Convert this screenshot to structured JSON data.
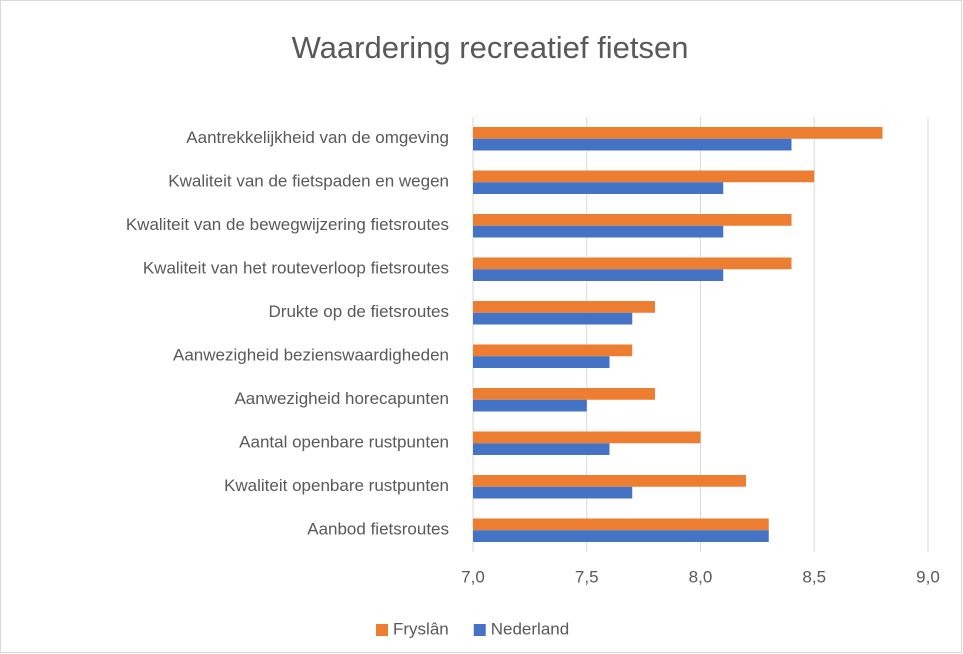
{
  "chart_data": {
    "type": "bar",
    "orientation": "horizontal",
    "title": "Waardering recreatief fietsen",
    "categories": [
      "Aantrekkelijkheid van de omgeving",
      "Kwaliteit van de fietspaden en wegen",
      "Kwaliteit van de bewegwijzering fietsroutes",
      "Kwaliteit van het routeverloop fietsroutes",
      "Drukte op de fietsroutes",
      "Aanwezigheid bezienswaardigheden",
      "Aanwezigheid horecapunten",
      "Aantal openbare rustpunten",
      "Kwaliteit openbare rustpunten",
      "Aanbod fietsroutes"
    ],
    "series": [
      {
        "name": "Fryslân",
        "color": "#ed7d31",
        "values": [
          8.8,
          8.5,
          8.4,
          8.4,
          7.8,
          7.7,
          7.8,
          8.0,
          8.2,
          8.3
        ]
      },
      {
        "name": "Nederland",
        "color": "#4472c4",
        "values": [
          8.4,
          8.1,
          8.1,
          8.1,
          7.7,
          7.6,
          7.5,
          7.6,
          7.7,
          8.3
        ]
      }
    ],
    "xlim": [
      7,
      9
    ],
    "xticks": [
      {
        "value": 7,
        "label": "7,0"
      },
      {
        "value": 7.5,
        "label": "7,5"
      },
      {
        "value": 8,
        "label": "8,0"
      },
      {
        "value": 8.5,
        "label": "8,5"
      },
      {
        "value": 9,
        "label": "9,0"
      }
    ],
    "grid": true,
    "legend": "bottom"
  }
}
